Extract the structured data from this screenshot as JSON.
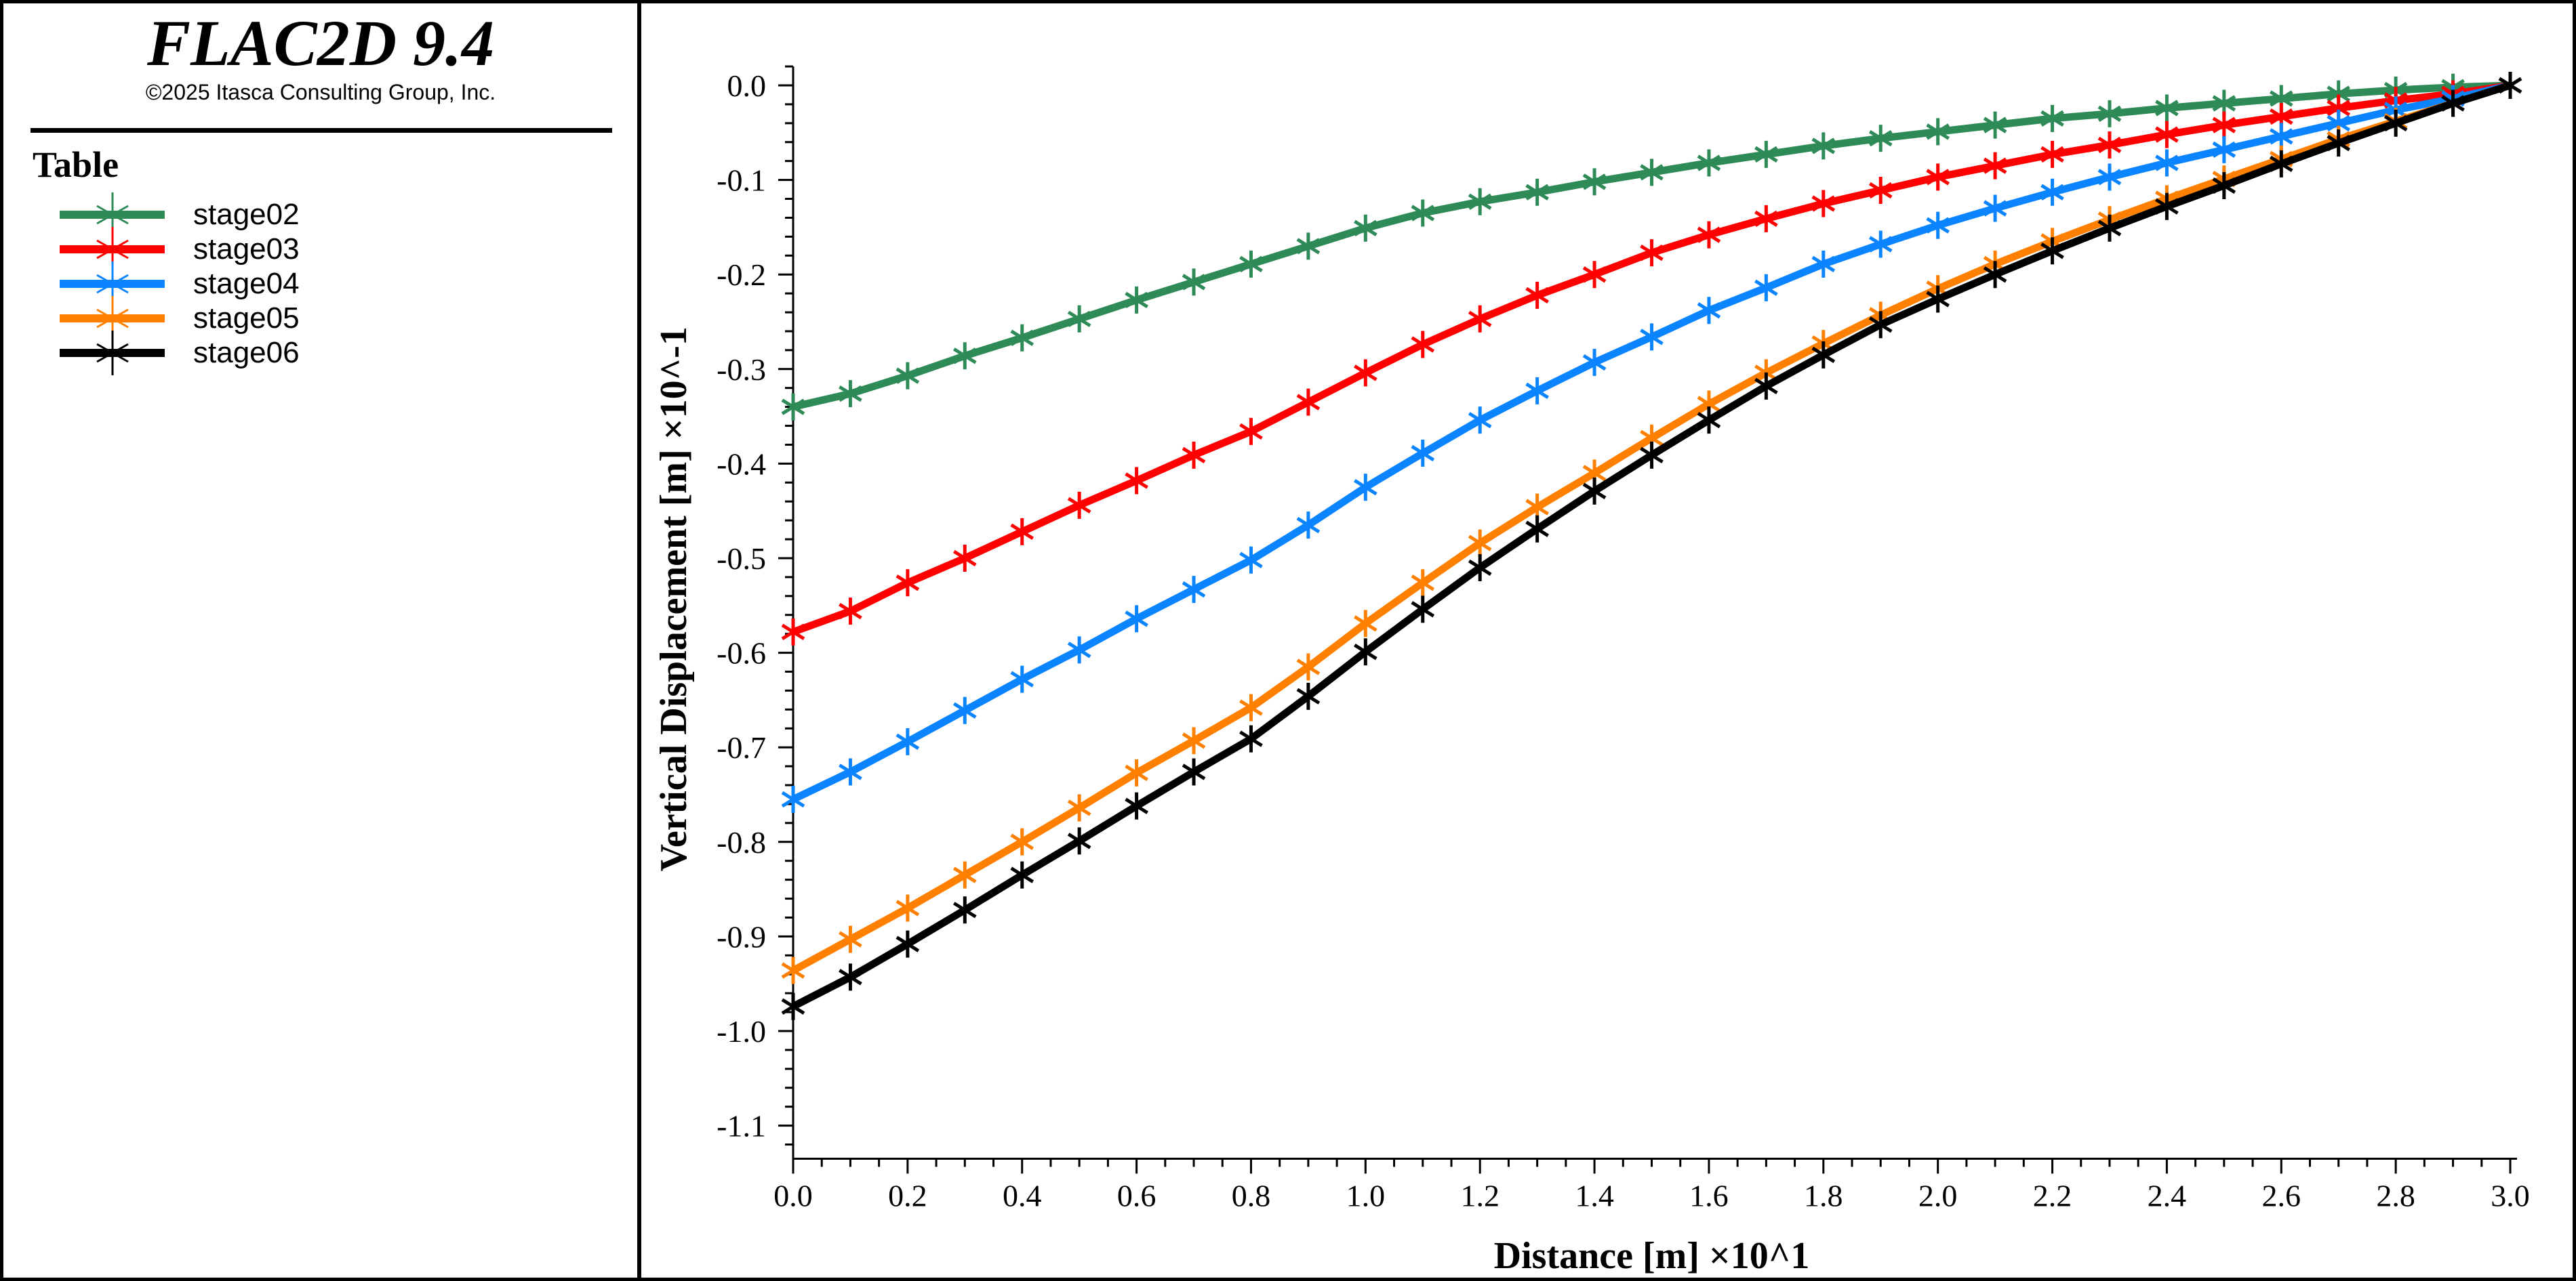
{
  "header": {
    "title": "FLAC2D 9.4",
    "copyright": "©2025 Itasca Consulting Group, Inc."
  },
  "legend": {
    "heading": "Table"
  },
  "chart_data": {
    "type": "line",
    "title": "",
    "xlabel": "Distance [m] ×10^1",
    "ylabel": "Vertical Displacement [m] ×10^-1",
    "xlim": [
      0,
      3.0
    ],
    "ylim": [
      -1.135,
      0.02
    ],
    "xticks": [
      "0.0",
      "0.2",
      "0.4",
      "0.6",
      "0.8",
      "1.0",
      "1.2",
      "1.4",
      "1.6",
      "1.8",
      "2.0",
      "2.2",
      "2.4",
      "2.6",
      "2.8",
      "3.0"
    ],
    "yticks": [
      "0.0",
      "-0.1",
      "-0.2",
      "-0.3",
      "-0.4",
      "-0.5",
      "-0.6",
      "-0.7",
      "-0.8",
      "-0.9",
      "-1.0",
      "-1.1"
    ],
    "grid": false,
    "legend_position": "left-panel",
    "x": [
      0,
      0.1,
      0.2,
      0.3,
      0.4,
      0.5,
      0.6,
      0.7,
      0.8,
      0.9,
      1.0,
      1.1,
      1.2,
      1.3,
      1.4,
      1.5,
      1.6,
      1.7,
      1.8,
      1.9,
      2.0,
      2.1,
      2.2,
      2.3,
      2.4,
      2.5,
      2.6,
      2.7,
      2.8,
      2.9,
      3.0
    ],
    "series": [
      {
        "name": "stage02",
        "color": "#2e8b57",
        "values": [
          -0.34,
          -0.326,
          -0.307,
          -0.286,
          -0.267,
          -0.247,
          -0.227,
          -0.208,
          -0.189,
          -0.17,
          -0.151,
          -0.135,
          -0.123,
          -0.113,
          -0.102,
          -0.092,
          -0.082,
          -0.073,
          -0.064,
          -0.056,
          -0.049,
          -0.042,
          -0.035,
          -0.03,
          -0.024,
          -0.019,
          -0.014,
          -0.009,
          -0.005,
          -0.002,
          0
        ]
      },
      {
        "name": "stage03",
        "color": "#ff0000",
        "values": [
          -0.578,
          -0.556,
          -0.526,
          -0.5,
          -0.472,
          -0.444,
          -0.418,
          -0.391,
          -0.366,
          -0.335,
          -0.304,
          -0.274,
          -0.247,
          -0.222,
          -0.2,
          -0.177,
          -0.158,
          -0.141,
          -0.125,
          -0.111,
          -0.097,
          -0.085,
          -0.073,
          -0.063,
          -0.052,
          -0.042,
          -0.033,
          -0.024,
          -0.016,
          -0.009,
          0
        ]
      },
      {
        "name": "stage04",
        "color": "#0a84ff",
        "values": [
          -0.755,
          -0.726,
          -0.694,
          -0.661,
          -0.628,
          -0.597,
          -0.564,
          -0.533,
          -0.502,
          -0.465,
          -0.425,
          -0.389,
          -0.354,
          -0.323,
          -0.293,
          -0.266,
          -0.238,
          -0.214,
          -0.189,
          -0.168,
          -0.148,
          -0.13,
          -0.113,
          -0.097,
          -0.082,
          -0.068,
          -0.054,
          -0.04,
          -0.026,
          -0.014,
          0
        ]
      },
      {
        "name": "stage05",
        "color": "#ff8000",
        "values": [
          -0.936,
          -0.903,
          -0.87,
          -0.835,
          -0.8,
          -0.764,
          -0.727,
          -0.693,
          -0.658,
          -0.615,
          -0.569,
          -0.526,
          -0.484,
          -0.446,
          -0.41,
          -0.373,
          -0.337,
          -0.304,
          -0.273,
          -0.243,
          -0.215,
          -0.189,
          -0.165,
          -0.142,
          -0.12,
          -0.099,
          -0.078,
          -0.057,
          -0.038,
          -0.019,
          0
        ]
      },
      {
        "name": "stage06",
        "color": "#000000",
        "values": [
          -0.974,
          -0.943,
          -0.908,
          -0.872,
          -0.835,
          -0.799,
          -0.762,
          -0.726,
          -0.691,
          -0.646,
          -0.599,
          -0.554,
          -0.51,
          -0.469,
          -0.429,
          -0.391,
          -0.354,
          -0.318,
          -0.285,
          -0.253,
          -0.226,
          -0.2,
          -0.175,
          -0.151,
          -0.128,
          -0.106,
          -0.083,
          -0.061,
          -0.04,
          -0.019,
          0
        ]
      }
    ]
  }
}
